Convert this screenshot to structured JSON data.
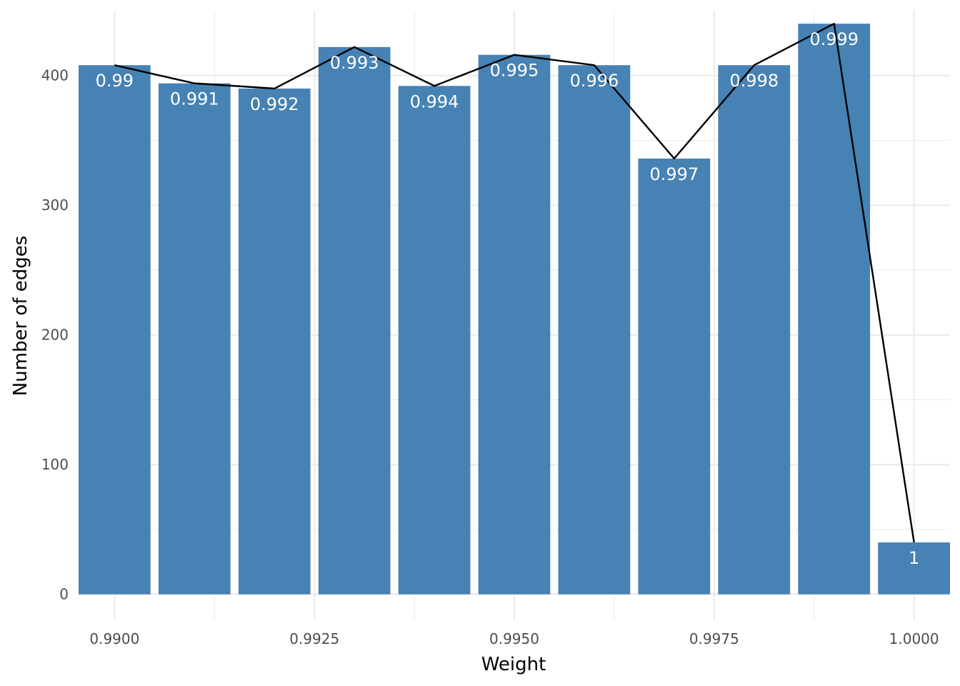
{
  "chart_data": {
    "type": "bar",
    "xlabel": "Weight",
    "ylabel": "Number of edges",
    "xlim": [
      0.98955,
      1.00045
    ],
    "ylim": [
      -20,
      450
    ],
    "x_ticks": [
      0.99,
      0.9925,
      0.995,
      0.9975,
      1.0
    ],
    "x_tick_labels": [
      "0.9900",
      "0.9925",
      "0.9950",
      "0.9975",
      "1.0000"
    ],
    "y_ticks": [
      0,
      100,
      200,
      300,
      400
    ],
    "y_tick_labels": [
      "0",
      "100",
      "200",
      "300",
      "400"
    ],
    "bar_width": 0.0009,
    "x": [
      0.99,
      0.991,
      0.992,
      0.993,
      0.994,
      0.995,
      0.996,
      0.997,
      0.998,
      0.999,
      1.0
    ],
    "values": [
      408,
      394,
      390,
      422,
      392,
      416,
      408,
      336,
      408,
      440,
      40
    ],
    "labels": [
      "0.99",
      "0.991",
      "0.992",
      "0.993",
      "0.994",
      "0.995",
      "0.996",
      "0.997",
      "0.998",
      "0.999",
      "1"
    ],
    "bar_color": "#4682b4",
    "line_color": "#000000",
    "grid": true,
    "legend": "none"
  }
}
